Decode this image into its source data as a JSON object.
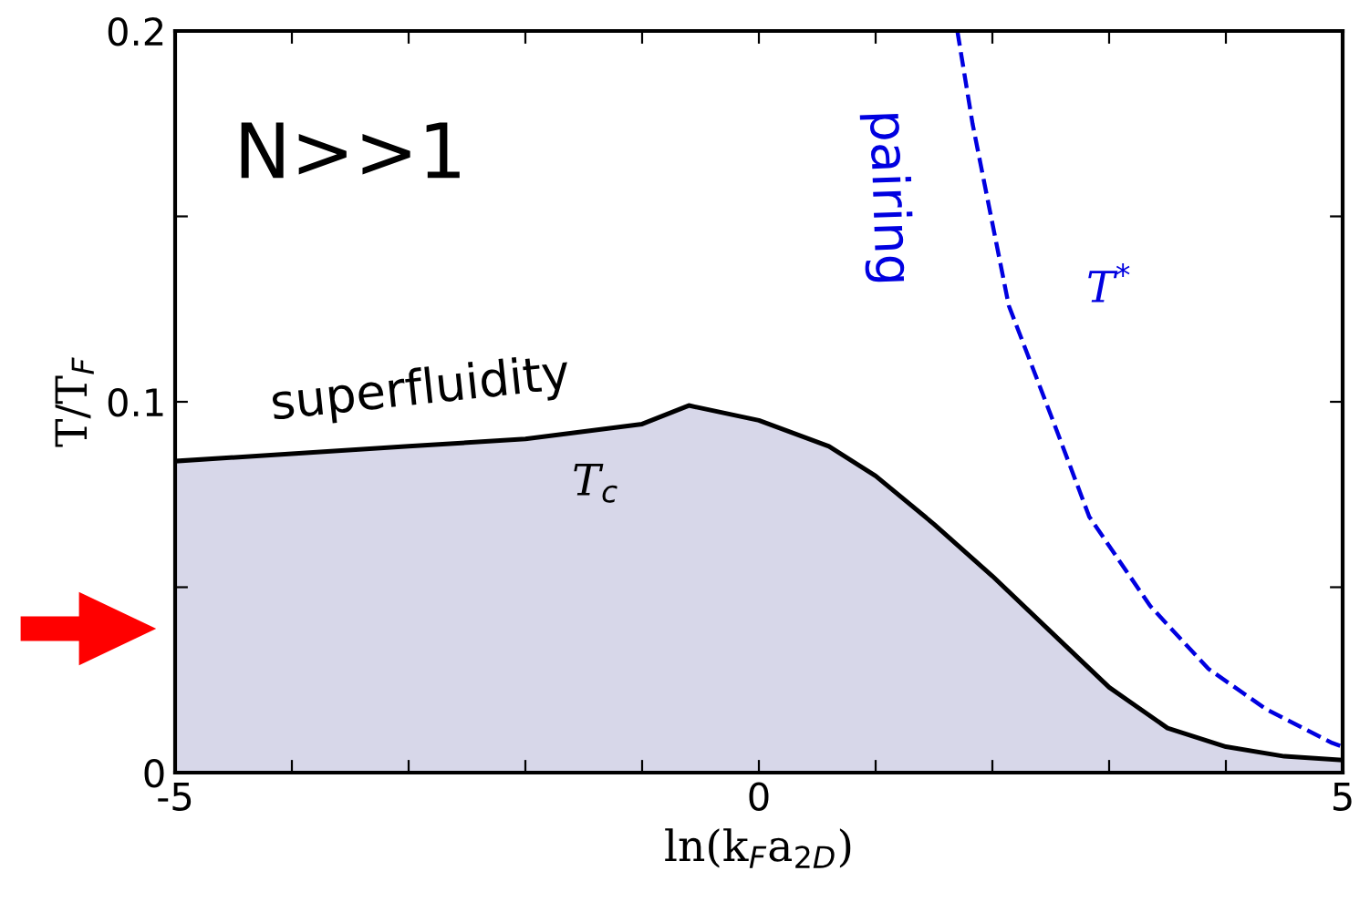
{
  "chart_data": {
    "type": "line",
    "xlabel": "ln(k$_{F}$a$_{2D}$)",
    "ylabel": "T/T$_{F}$",
    "xlim": [
      -5,
      5
    ],
    "ylim": [
      0,
      0.2
    ],
    "xticks": [
      -5,
      {
        "value": -4,
        "label": null
      },
      {
        "value": -3,
        "label": null
      },
      {
        "value": -2,
        "label": null
      },
      {
        "value": -1,
        "label": null
      },
      0,
      {
        "value": 1,
        "label": null
      },
      {
        "value": 2,
        "label": null
      },
      {
        "value": 3,
        "label": null
      },
      {
        "value": 4,
        "label": null
      },
      5
    ],
    "yticks": [
      0,
      {
        "value": 0.05,
        "label": null
      },
      0.1,
      {
        "value": 0.15,
        "label": null
      },
      0.2
    ],
    "grid": false,
    "legend": false,
    "series": [
      {
        "type": "area",
        "color": "#d7d7e9",
        "x": [
          -5,
          -4,
          -3,
          -2,
          -1,
          -0.6,
          0,
          0.6,
          1,
          1.5,
          2,
          2.5,
          3,
          3.5,
          4,
          4.5,
          5
        ],
        "values": [
          0.084,
          0.086,
          0.088,
          0.09,
          0.094,
          0.099,
          0.095,
          0.088,
          0.08,
          0.067,
          0.053,
          0.038,
          0.023,
          0.012,
          0.007,
          0.0044,
          0.0034
        ]
      },
      {
        "color": "#0000e0",
        "line_style": "dashed",
        "x": [
          1.7,
          1.83,
          2.14,
          2.53,
          2.83,
          3.35,
          3.85,
          4.35,
          4.91,
          5
        ],
        "values": [
          0.2,
          0.175,
          0.126,
          0.094,
          0.069,
          0.045,
          0.028,
          0.017,
          0.008,
          0.007
        ]
      }
    ],
    "annotations": [
      "N>>1",
      "superfluidity",
      "T$_{c}$",
      "pairing",
      "T$^{*}$"
    ]
  }
}
